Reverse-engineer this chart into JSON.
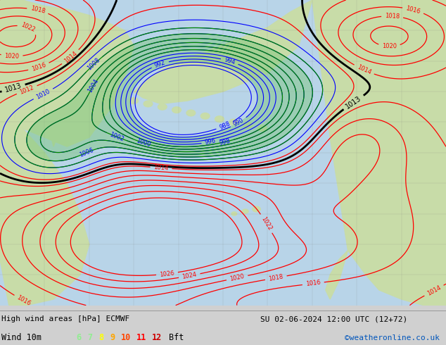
{
  "title_line1": "High wind areas [hPa] ECMWF",
  "title_line2": "SU 02-06-2024 12:00 UTC (12+72)",
  "wind_label": "Wind 10m",
  "bft_nums": [
    "6",
    "7",
    "8",
    "9",
    "10",
    "11",
    "12"
  ],
  "bft_colors": [
    "#90ee90",
    "#90ee90",
    "#ffff00",
    "#ffa500",
    "#ff4500",
    "#ff0000",
    "#cc0000"
  ],
  "copyright": "©weatheronline.co.uk",
  "ocean_color": "#b8d4e8",
  "land_color": "#c8dca8",
  "info_bg": "#d0d0d0",
  "figsize": [
    6.34,
    4.9
  ],
  "dpi": 100
}
